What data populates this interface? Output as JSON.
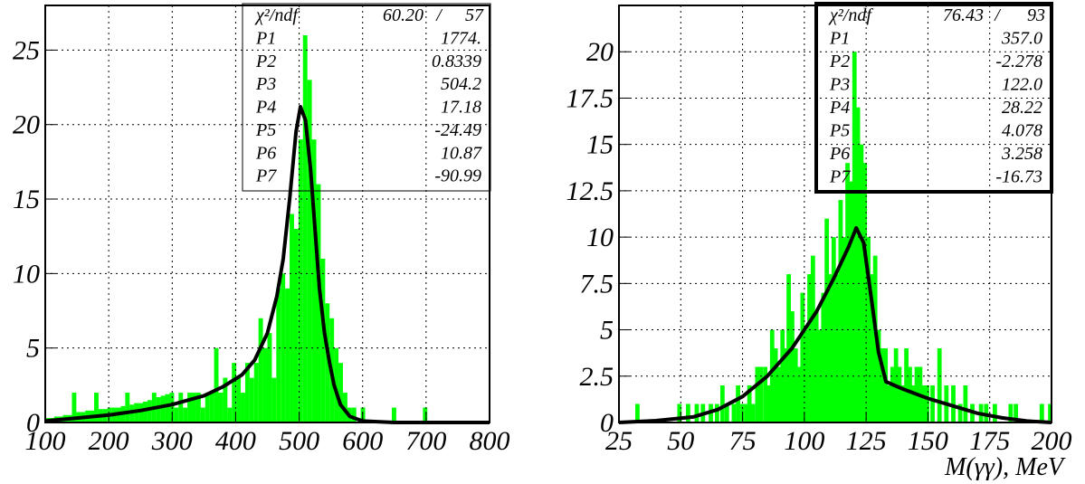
{
  "chart_data": [
    {
      "type": "bar",
      "title": "",
      "xlabel": "",
      "ylabel": "",
      "xlim": [
        100,
        800
      ],
      "ylim": [
        0,
        28
      ],
      "grid": true,
      "bin_width": 7,
      "x_ticks": [
        "100",
        "200",
        "300",
        "400",
        "500",
        "600",
        "700",
        "800"
      ],
      "y_ticks": [
        "0",
        "5",
        "10",
        "15",
        "20",
        "25"
      ],
      "bins": [
        [
          100,
          0.3
        ],
        [
          107,
          0.3
        ],
        [
          114,
          0.4
        ],
        [
          121,
          0.4
        ],
        [
          128,
          0.5
        ],
        [
          135,
          0.5
        ],
        [
          142,
          2
        ],
        [
          149,
          0.7
        ],
        [
          156,
          0.7
        ],
        [
          163,
          0.8
        ],
        [
          170,
          0.8
        ],
        [
          177,
          2
        ],
        [
          184,
          0.9
        ],
        [
          191,
          0.9
        ],
        [
          198,
          1
        ],
        [
          205,
          1
        ],
        [
          212,
          1
        ],
        [
          219,
          1.1
        ],
        [
          226,
          2
        ],
        [
          233,
          1.2
        ],
        [
          240,
          1.3
        ],
        [
          247,
          1.3
        ],
        [
          254,
          1.4
        ],
        [
          261,
          1.5
        ],
        [
          268,
          2
        ],
        [
          275,
          1.7
        ],
        [
          282,
          1.8
        ],
        [
          289,
          1.9
        ],
        [
          296,
          2
        ],
        [
          303,
          1
        ],
        [
          310,
          2
        ],
        [
          317,
          1
        ],
        [
          324,
          2
        ],
        [
          331,
          2
        ],
        [
          338,
          2
        ],
        [
          345,
          1
        ],
        [
          352,
          2
        ],
        [
          359,
          2
        ],
        [
          366,
          5
        ],
        [
          373,
          2
        ],
        [
          380,
          3
        ],
        [
          387,
          1
        ],
        [
          394,
          4
        ],
        [
          401,
          3
        ],
        [
          408,
          2
        ],
        [
          415,
          4
        ],
        [
          422,
          3
        ],
        [
          429,
          4
        ],
        [
          436,
          7
        ],
        [
          443,
          5
        ],
        [
          450,
          6
        ],
        [
          457,
          3
        ],
        [
          464,
          9
        ],
        [
          471,
          10
        ],
        [
          478,
          9
        ],
        [
          485,
          14
        ],
        [
          492,
          13
        ],
        [
          499,
          19
        ],
        [
          506,
          26
        ],
        [
          513,
          23
        ],
        [
          520,
          19
        ],
        [
          527,
          16
        ],
        [
          534,
          11
        ],
        [
          541,
          8
        ],
        [
          548,
          7
        ],
        [
          555,
          5
        ],
        [
          562,
          4
        ],
        [
          569,
          2
        ],
        [
          576,
          1
        ],
        [
          583,
          1
        ],
        [
          590,
          0
        ],
        [
          597,
          1
        ],
        [
          604,
          0
        ],
        [
          611,
          0
        ],
        [
          618,
          0
        ],
        [
          625,
          0
        ],
        [
          632,
          0
        ],
        [
          639,
          0
        ],
        [
          646,
          1
        ],
        [
          653,
          0
        ],
        [
          660,
          0
        ],
        [
          667,
          0
        ],
        [
          674,
          0
        ],
        [
          681,
          0
        ],
        [
          688,
          0
        ],
        [
          695,
          1
        ],
        [
          702,
          0
        ],
        [
          709,
          0
        ],
        [
          716,
          0
        ],
        [
          723,
          0
        ],
        [
          730,
          0
        ],
        [
          737,
          0
        ],
        [
          744,
          0
        ],
        [
          751,
          0
        ],
        [
          758,
          0
        ],
        [
          765,
          0
        ],
        [
          772,
          0
        ],
        [
          779,
          0
        ],
        [
          786,
          0
        ],
        [
          793,
          0
        ]
      ],
      "fit_curve": [
        [
          100,
          0.1
        ],
        [
          150,
          0.3
        ],
        [
          200,
          0.5
        ],
        [
          250,
          0.8
        ],
        [
          300,
          1.2
        ],
        [
          350,
          1.8
        ],
        [
          380,
          2.4
        ],
        [
          410,
          3.2
        ],
        [
          430,
          4.2
        ],
        [
          450,
          6
        ],
        [
          465,
          8.5
        ],
        [
          475,
          11
        ],
        [
          485,
          15
        ],
        [
          495,
          19.5
        ],
        [
          502,
          21.2
        ],
        [
          510,
          20.3
        ],
        [
          518,
          17
        ],
        [
          525,
          13
        ],
        [
          532,
          9
        ],
        [
          540,
          6
        ],
        [
          548,
          4
        ],
        [
          555,
          2.5
        ],
        [
          565,
          1.2
        ],
        [
          580,
          0.4
        ],
        [
          600,
          0.1
        ],
        [
          650,
          0
        ],
        [
          800,
          0
        ]
      ],
      "stats": {
        "header": {
          "label": "χ²/ndf",
          "value": "60.20",
          "sep": "/",
          "ndf": "57"
        },
        "params": [
          {
            "name": "P1",
            "value": "1774."
          },
          {
            "name": "P2",
            "value": "0.8339"
          },
          {
            "name": "P3",
            "value": "504.2"
          },
          {
            "name": "P4",
            "value": "17.18"
          },
          {
            "name": "P5",
            "value": "-24.49"
          },
          {
            "name": "P6",
            "value": "10.87"
          },
          {
            "name": "P7",
            "value": "-90.99"
          }
        ]
      }
    },
    {
      "type": "bar",
      "title": "",
      "xlabel": "M(γγ), MeV",
      "ylabel": "",
      "xlim": [
        25,
        200
      ],
      "ylim": [
        0,
        22.5
      ],
      "grid": true,
      "bin_width": 1.75,
      "x_ticks": [
        "25",
        "50",
        "75",
        "100",
        "125",
        "150",
        "175",
        "200"
      ],
      "y_ticks": [
        "0",
        "2.5",
        "5",
        "7.5",
        "10",
        "12.5",
        "15",
        "17.5",
        "20"
      ],
      "bins": [
        [
          31.6,
          1
        ],
        [
          42.3,
          0
        ],
        [
          48.6,
          1
        ],
        [
          52.1,
          1
        ],
        [
          55.6,
          1
        ],
        [
          58.1,
          1
        ],
        [
          61.3,
          1
        ],
        [
          63.8,
          1
        ],
        [
          66,
          2
        ],
        [
          67.8,
          1
        ],
        [
          70.6,
          1
        ],
        [
          72.3,
          2
        ],
        [
          74.1,
          1
        ],
        [
          75.9,
          1
        ],
        [
          76.9,
          2
        ],
        [
          78.3,
          1
        ],
        [
          80.1,
          3
        ],
        [
          81.5,
          3
        ],
        [
          83.3,
          3
        ],
        [
          84.4,
          2
        ],
        [
          86.1,
          5
        ],
        [
          87.5,
          4
        ],
        [
          88.9,
          3
        ],
        [
          90.3,
          5
        ],
        [
          91.7,
          4
        ],
        [
          92.8,
          8
        ],
        [
          94.2,
          6
        ],
        [
          95.6,
          4
        ],
        [
          97,
          3
        ],
        [
          98.4,
          7
        ],
        [
          99.8,
          5
        ],
        [
          101.2,
          8
        ],
        [
          102.6,
          9
        ],
        [
          104,
          6
        ],
        [
          105.4,
          5
        ],
        [
          106.8,
          7
        ],
        [
          108.2,
          11
        ],
        [
          109.6,
          8
        ],
        [
          111,
          10
        ],
        [
          112.4,
          8
        ],
        [
          113.8,
          12
        ],
        [
          115.2,
          10
        ],
        [
          116.6,
          14
        ],
        [
          118,
          13
        ],
        [
          119.4,
          20
        ],
        [
          120.8,
          17
        ],
        [
          122.2,
          15
        ],
        [
          123.6,
          14
        ],
        [
          125,
          10
        ],
        [
          126.4,
          8
        ],
        [
          127.8,
          9
        ],
        [
          129.2,
          5
        ],
        [
          130.6,
          4
        ],
        [
          132,
          4
        ],
        [
          133.4,
          2
        ],
        [
          134.8,
          3
        ],
        [
          136.2,
          4
        ],
        [
          137.6,
          3
        ],
        [
          139,
          2
        ],
        [
          140.4,
          4
        ],
        [
          141.8,
          3
        ],
        [
          143.2,
          2
        ],
        [
          144.6,
          3
        ],
        [
          146,
          3
        ],
        [
          147.4,
          2
        ],
        [
          148.8,
          2
        ],
        [
          151,
          2
        ],
        [
          153.8,
          4
        ],
        [
          156.6,
          2
        ],
        [
          159.4,
          2
        ],
        [
          162.2,
          1
        ],
        [
          164.3,
          2
        ],
        [
          167.1,
          1
        ],
        [
          170.6,
          1
        ],
        [
          172.7,
          1
        ],
        [
          176.2,
          1
        ],
        [
          182.6,
          1
        ],
        [
          184.7,
          1
        ],
        [
          195.2,
          1
        ],
        [
          198.6,
          1
        ]
      ],
      "fit_curve": [
        [
          25,
          0
        ],
        [
          40,
          0.1
        ],
        [
          55,
          0.3
        ],
        [
          65,
          0.7
        ],
        [
          75,
          1.4
        ],
        [
          85,
          2.5
        ],
        [
          95,
          4
        ],
        [
          105,
          6
        ],
        [
          112,
          7.8
        ],
        [
          118,
          9.5
        ],
        [
          121,
          10.5
        ],
        [
          124,
          9.7
        ],
        [
          127,
          6.8
        ],
        [
          130,
          3.8
        ],
        [
          133,
          2.2
        ],
        [
          140,
          1.8
        ],
        [
          150,
          1.3
        ],
        [
          160,
          0.9
        ],
        [
          170,
          0.5
        ],
        [
          180,
          0.25
        ],
        [
          190,
          0.08
        ],
        [
          200,
          0
        ]
      ],
      "stats": {
        "header": {
          "label": "χ²/ndf",
          "value": "76.43",
          "sep": "/",
          "ndf": "93"
        },
        "params": [
          {
            "name": "P1",
            "value": "357.0"
          },
          {
            "name": "P2",
            "value": "-2.278"
          },
          {
            "name": "P3",
            "value": "122.0"
          },
          {
            "name": "P4",
            "value": "28.22"
          },
          {
            "name": "P5",
            "value": "4.078"
          },
          {
            "name": "P6",
            "value": "3.258"
          },
          {
            "name": "P7",
            "value": "-16.73"
          }
        ]
      }
    }
  ]
}
